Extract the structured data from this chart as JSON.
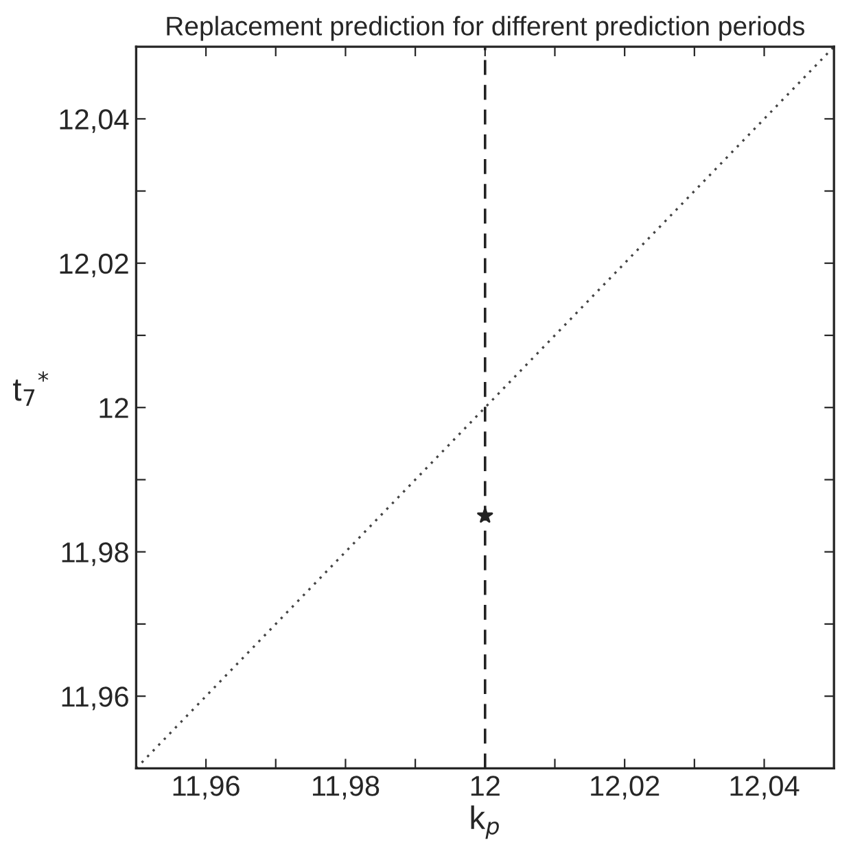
{
  "chart_data": {
    "type": "line",
    "title": "Replacement prediction for different prediction periods",
    "xlabel": "k$_{p}$",
    "ylabel": "t$_{7}$$^{*}$",
    "series": [
      {
        "x": [
          11.95,
          12.05
        ],
        "values": [
          11.95,
          12.05
        ],
        "color": "#444444",
        "line_style": "dotted",
        "marker": "none"
      },
      {
        "type": "scatter",
        "x": [
          12
        ],
        "values": [
          11.985
        ],
        "color": "#222222",
        "marker": "star"
      }
    ],
    "ref_lines": [
      {
        "axis": "x",
        "value": 12,
        "color": "#222222",
        "line_style": "dashed"
      }
    ],
    "xlim": [
      11.95,
      12.05
    ],
    "ylim": [
      11.95,
      12.05
    ],
    "xticks": [
      {
        "value": 11.96,
        "label": "11,96"
      },
      {
        "value": 11.97,
        "label": null
      },
      {
        "value": 11.98,
        "label": "11,98"
      },
      {
        "value": 11.99,
        "label": null
      },
      12,
      {
        "value": 12.01,
        "label": null
      },
      {
        "value": 12.02,
        "label": "12,02"
      },
      {
        "value": 12.03,
        "label": null
      },
      {
        "value": 12.04,
        "label": "12,04"
      }
    ],
    "yticks": [
      {
        "value": 11.96,
        "label": "11,96"
      },
      {
        "value": 11.97,
        "label": null
      },
      {
        "value": 11.98,
        "label": "11,98"
      },
      {
        "value": 11.99,
        "label": null
      },
      12,
      {
        "value": 12.01,
        "label": null
      },
      {
        "value": 12.02,
        "label": "12,02"
      },
      {
        "value": 12.03,
        "label": null
      },
      {
        "value": 12.04,
        "label": "12,04"
      }
    ],
    "grid": false,
    "legend": false
  }
}
